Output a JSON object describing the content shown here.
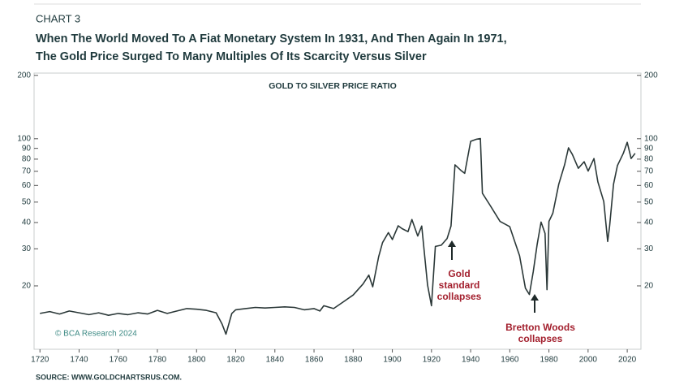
{
  "chart_data": {
    "type": "line",
    "header": "CHART 3",
    "title": [
      "When The World Moved To A Fiat Monetary System In 1931, And Then Again In 1971,",
      "The Gold Price Surged To Many Multiples Of Its Scarcity Versus Silver"
    ],
    "chart_title": "GOLD TO SILVER PRICE RATIO",
    "copyright": "© BCA Research 2024",
    "source": "SOURCE: WWW.GOLDCHARTSRUS.COM.",
    "annotations": [
      [
        "Gold",
        "standard",
        "collapses"
      ],
      [
        "Bretton Woods",
        "collapses"
      ]
    ],
    "log_scale": true,
    "xlim": [
      1717,
      2027
    ],
    "xticks": [
      1720,
      1740,
      1760,
      1780,
      1800,
      1820,
      1840,
      1860,
      1880,
      1900,
      1920,
      1940,
      1960,
      1980,
      2000,
      2020
    ],
    "ylim": [
      10,
      205
    ],
    "yticks": [
      20,
      30,
      40,
      50,
      60,
      70,
      80,
      90,
      100,
      200
    ],
    "y2lim": [
      10,
      205
    ],
    "y2ticks": [
      20,
      30,
      40,
      50,
      60,
      70,
      80,
      90,
      100,
      200
    ],
    "series": [
      {
        "name": "Gold to silver price ratio",
        "color": "#2b3838",
        "x": [
          1720,
          1725,
          1730,
          1735,
          1740,
          1745,
          1750,
          1755,
          1760,
          1765,
          1770,
          1775,
          1780,
          1785,
          1790,
          1795,
          1800,
          1805,
          1810,
          1813,
          1815,
          1818,
          1820,
          1825,
          1830,
          1835,
          1840,
          1845,
          1850,
          1855,
          1860,
          1863,
          1865,
          1870,
          1875,
          1880,
          1885,
          1888,
          1890,
          1893,
          1895,
          1898,
          1900,
          1903,
          1905,
          1908,
          1910,
          1913,
          1915,
          1918,
          1920,
          1922,
          1925,
          1928,
          1930,
          1932,
          1935,
          1937,
          1940,
          1943,
          1945,
          1946,
          1950,
          1955,
          1960,
          1963,
          1965,
          1968,
          1970,
          1972,
          1974,
          1976,
          1978,
          1979,
          1980,
          1982,
          1985,
          1988,
          1990,
          1992,
          1995,
          1998,
          2000,
          2003,
          2005,
          2008,
          2010,
          2011,
          2013,
          2015,
          2018,
          2020,
          2022,
          2024
        ],
        "values": [
          14.8,
          15.1,
          14.7,
          15.2,
          14.9,
          14.6,
          14.9,
          14.5,
          14.8,
          14.6,
          14.9,
          14.7,
          15.3,
          14.8,
          15.2,
          15.6,
          15.5,
          15.3,
          14.9,
          13.2,
          11.8,
          14.8,
          15.4,
          15.6,
          15.8,
          15.7,
          15.8,
          15.9,
          15.8,
          15.4,
          15.6,
          15.2,
          16.1,
          15.6,
          16.8,
          18.1,
          20.4,
          22.5,
          19.8,
          27.5,
          32.1,
          35.8,
          33.2,
          38.6,
          37.4,
          36.2,
          41.3,
          34.5,
          38.5,
          20.2,
          16.1,
          30.8,
          31.2,
          33.6,
          38.5,
          75.2,
          70.8,
          68.5,
          97.2,
          99.5,
          100.2,
          55.1,
          48.2,
          40.5,
          38.2,
          31.5,
          27.8,
          19.5,
          18.2,
          23.4,
          31.5,
          40.2,
          35.5,
          19.2,
          40.5,
          44.3,
          60.8,
          75.2,
          90.5,
          84.2,
          72.4,
          77.8,
          70.2,
          80.5,
          62.4,
          50.3,
          32.5,
          38.5,
          60.8,
          74.5,
          85.3,
          96.2,
          80.5,
          85.2
        ]
      }
    ]
  }
}
